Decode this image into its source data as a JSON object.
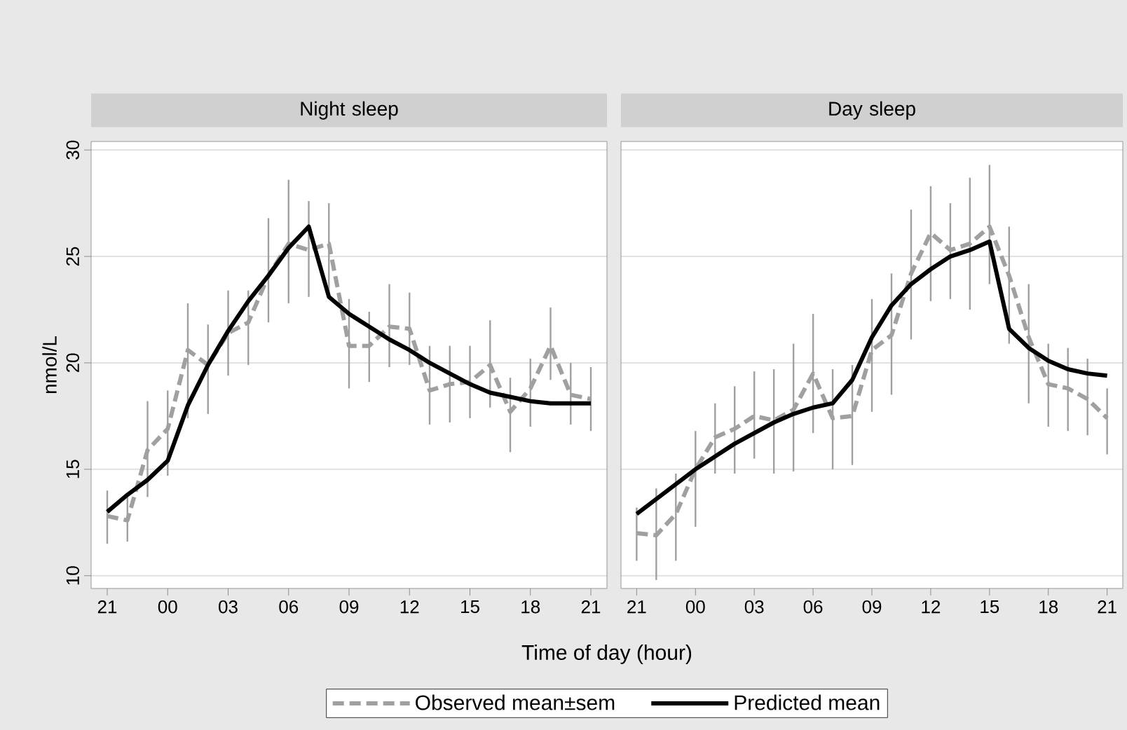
{
  "chart_data": [
    {
      "type": "line",
      "title": "Night sleep",
      "ylabel": "nmol/L",
      "xlabel": "Time of day (hour)",
      "x": [
        "2000-01-01T21:00",
        "2000-01-01T22:00",
        "2000-01-01T23:00",
        "2000-01-02T00:00",
        "2000-01-02T01:00",
        "2000-01-02T02:00",
        "2000-01-02T03:00",
        "2000-01-02T04:00",
        "2000-01-02T05:00",
        "2000-01-02T06:00",
        "2000-01-02T07:00",
        "2000-01-02T08:00",
        "2000-01-02T09:00",
        "2000-01-02T10:00",
        "2000-01-02T11:00",
        "2000-01-02T12:00",
        "2000-01-02T13:00",
        "2000-01-02T14:00",
        "2000-01-02T15:00",
        "2000-01-02T16:00",
        "2000-01-02T17:00",
        "2000-01-02T18:00",
        "2000-01-02T19:00",
        "2000-01-02T20:00",
        "2000-01-02T21:00"
      ],
      "xlim": [
        "2000-01-01T20:12",
        "2000-01-02T21:48"
      ],
      "ylim": [
        9.4,
        30.4
      ],
      "xticks": [
        {
          "value": "2000-01-01T21:00",
          "label": "21"
        },
        {
          "value": "2000-01-02T00:00",
          "label": "00"
        },
        {
          "value": "2000-01-02T03:00",
          "label": "03"
        },
        {
          "value": "2000-01-02T06:00",
          "label": "06"
        },
        {
          "value": "2000-01-02T09:00",
          "label": "09"
        },
        {
          "value": "2000-01-02T12:00",
          "label": "12"
        },
        {
          "value": "2000-01-02T15:00",
          "label": "15"
        },
        {
          "value": "2000-01-02T18:00",
          "label": "18"
        },
        {
          "value": "2000-01-02T21:00",
          "label": "21"
        }
      ],
      "yticks": [
        10,
        15,
        20,
        25,
        30
      ],
      "grid": "y",
      "legend": "bottom",
      "series": [
        {
          "name": "Observed mean±sem",
          "color": "#a0a0a0",
          "line_style": "dashed",
          "values": [
            12.8,
            12.6,
            15.9,
            16.9,
            20.6,
            19.9,
            21.4,
            21.9,
            24.1,
            25.6,
            25.3,
            25.6,
            20.8,
            20.8,
            21.7,
            21.6,
            18.7,
            19.0,
            19.1,
            19.9,
            17.7,
            18.8,
            20.8,
            18.5,
            18.3
          ],
          "errors": [
            [
              11.5,
              14.0
            ],
            [
              11.6,
              13.7
            ],
            [
              13.7,
              18.2
            ],
            [
              14.7,
              18.7
            ],
            [
              17.4,
              22.8
            ],
            [
              17.6,
              21.8
            ],
            [
              19.4,
              23.4
            ],
            [
              19.9,
              23.4
            ],
            [
              21.9,
              26.8
            ],
            [
              22.8,
              28.6
            ],
            [
              23.1,
              27.6
            ],
            [
              23.0,
              27.5
            ],
            [
              18.8,
              23.0
            ],
            [
              19.1,
              22.4
            ],
            [
              19.8,
              23.7
            ],
            [
              19.9,
              23.3
            ],
            [
              17.1,
              20.8
            ],
            [
              17.2,
              20.8
            ],
            [
              17.4,
              20.8
            ],
            [
              17.9,
              22.0
            ],
            [
              15.8,
              19.3
            ],
            [
              17.0,
              20.2
            ],
            [
              19.2,
              22.6
            ],
            [
              17.1,
              20.0
            ],
            [
              16.8,
              19.8
            ]
          ]
        },
        {
          "name": "Predicted mean",
          "color": "#000000",
          "line_style": "solid",
          "values": [
            13.0,
            13.8,
            14.5,
            15.4,
            18.0,
            19.9,
            21.5,
            22.9,
            24.1,
            25.4,
            26.4,
            23.1,
            22.3,
            21.7,
            21.1,
            20.6,
            20.0,
            19.5,
            19.0,
            18.6,
            18.4,
            18.2,
            18.1,
            18.1,
            18.1
          ]
        }
      ]
    },
    {
      "type": "line",
      "title": "Day sleep",
      "tick_labels": "x",
      "x": [
        "2000-01-01T21:00",
        "2000-01-01T22:00",
        "2000-01-01T23:00",
        "2000-01-02T00:00",
        "2000-01-02T01:00",
        "2000-01-02T02:00",
        "2000-01-02T03:00",
        "2000-01-02T04:00",
        "2000-01-02T05:00",
        "2000-01-02T06:00",
        "2000-01-02T07:00",
        "2000-01-02T08:00",
        "2000-01-02T09:00",
        "2000-01-02T10:00",
        "2000-01-02T11:00",
        "2000-01-02T12:00",
        "2000-01-02T13:00",
        "2000-01-02T14:00",
        "2000-01-02T15:00",
        "2000-01-02T16:00",
        "2000-01-02T17:00",
        "2000-01-02T18:00",
        "2000-01-02T19:00",
        "2000-01-02T20:00",
        "2000-01-02T21:00"
      ],
      "xlim": [
        "2000-01-01T20:12",
        "2000-01-02T21:48"
      ],
      "ylim": [
        9.4,
        30.4
      ],
      "xticks": [
        {
          "value": "2000-01-01T21:00",
          "label": "21"
        },
        {
          "value": "2000-01-02T00:00",
          "label": "00"
        },
        {
          "value": "2000-01-02T03:00",
          "label": "03"
        },
        {
          "value": "2000-01-02T06:00",
          "label": "06"
        },
        {
          "value": "2000-01-02T09:00",
          "label": "09"
        },
        {
          "value": "2000-01-02T12:00",
          "label": "12"
        },
        {
          "value": "2000-01-02T15:00",
          "label": "15"
        },
        {
          "value": "2000-01-02T18:00",
          "label": "18"
        },
        {
          "value": "2000-01-02T21:00",
          "label": "21"
        }
      ],
      "yticks": [
        10,
        15,
        20,
        25,
        30
      ],
      "grid": "y",
      "series": [
        {
          "color": "#a0a0a0",
          "line_style": "dashed",
          "values": [
            12.0,
            11.9,
            12.9,
            15.0,
            16.5,
            16.9,
            17.5,
            17.3,
            17.8,
            19.5,
            17.4,
            17.5,
            20.6,
            21.3,
            24.2,
            26.1,
            25.3,
            25.6,
            26.4,
            24.1,
            21.2,
            19.0,
            18.8,
            18.3,
            17.4
          ],
          "errors": [
            [
              10.7,
              13.2
            ],
            [
              9.8,
              14.1
            ],
            [
              10.7,
              14.8
            ],
            [
              12.3,
              16.8
            ],
            [
              14.8,
              18.1
            ],
            [
              14.8,
              18.9
            ],
            [
              15.5,
              19.6
            ],
            [
              14.8,
              19.7
            ],
            [
              14.9,
              20.9
            ],
            [
              16.7,
              22.3
            ],
            [
              15.0,
              19.7
            ],
            [
              15.2,
              19.9
            ],
            [
              17.7,
              23.0
            ],
            [
              18.5,
              24.2
            ],
            [
              21.1,
              27.2
            ],
            [
              22.9,
              28.3
            ],
            [
              23.0,
              27.5
            ],
            [
              22.5,
              28.7
            ],
            [
              23.7,
              29.3
            ],
            [
              20.9,
              26.4
            ],
            [
              18.1,
              23.7
            ],
            [
              17.0,
              20.9
            ],
            [
              16.8,
              20.7
            ],
            [
              16.6,
              20.2
            ],
            [
              15.7,
              18.8
            ]
          ]
        },
        {
          "color": "#000000",
          "line_style": "solid",
          "values": [
            12.9,
            13.6,
            14.3,
            15.0,
            15.6,
            16.2,
            16.7,
            17.2,
            17.6,
            17.9,
            18.1,
            19.2,
            21.2,
            22.7,
            23.7,
            24.4,
            25.0,
            25.3,
            25.7,
            21.6,
            20.7,
            20.1,
            19.7,
            19.5,
            19.4
          ]
        }
      ]
    }
  ]
}
